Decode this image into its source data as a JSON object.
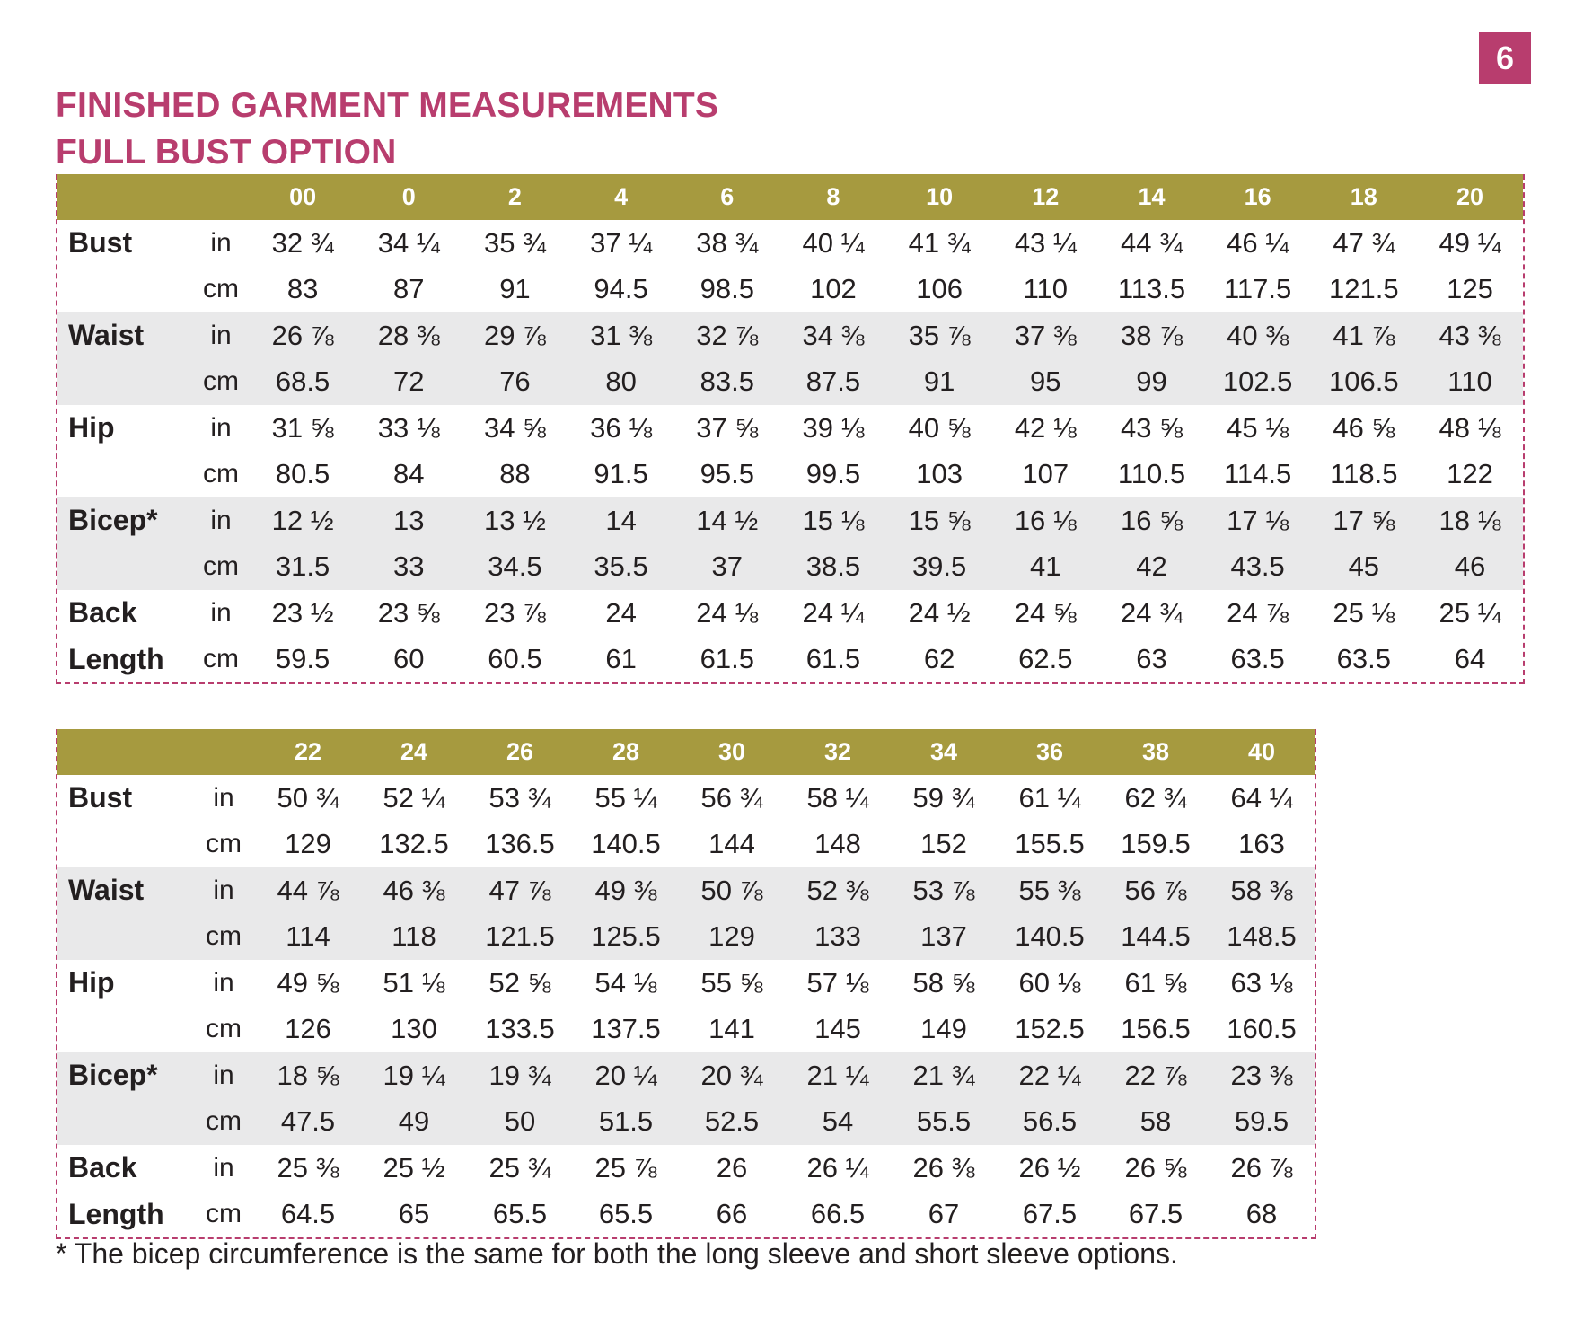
{
  "page_number": "6",
  "title": {
    "line1": "FINISHED GARMENT MEASUREMENTS",
    "line2": "FULL BUST OPTION"
  },
  "colors": {
    "accent": "#b83d6e",
    "header": "#a69a3f",
    "shade": "#e9e9ea"
  },
  "tables": [
    {
      "sizes": [
        "00",
        "0",
        "2",
        "4",
        "6",
        "8",
        "10",
        "12",
        "14",
        "16",
        "18",
        "20"
      ],
      "measurements": [
        {
          "label1": "Bust",
          "label2": "",
          "in": [
            "32 ¾",
            "34 ¼",
            "35 ¾",
            "37 ¼",
            "38 ¾",
            "40 ¼",
            "41 ¾",
            "43 ¼",
            "44 ¾",
            "46 ¼",
            "47 ¾",
            "49 ¼"
          ],
          "cm": [
            "83",
            "87",
            "91",
            "94.5",
            "98.5",
            "102",
            "106",
            "110",
            "113.5",
            "117.5",
            "121.5",
            "125"
          ]
        },
        {
          "label1": "Waist",
          "label2": "",
          "in": [
            "26 ⅞",
            "28 ⅜",
            "29 ⅞",
            "31 ⅜",
            "32 ⅞",
            "34 ⅜",
            "35 ⅞",
            "37 ⅜",
            "38 ⅞",
            "40 ⅜",
            "41 ⅞",
            "43 ⅜"
          ],
          "cm": [
            "68.5",
            "72",
            "76",
            "80",
            "83.5",
            "87.5",
            "91",
            "95",
            "99",
            "102.5",
            "106.5",
            "110"
          ]
        },
        {
          "label1": "Hip",
          "label2": "",
          "in": [
            "31 ⅝",
            "33 ⅛",
            "34 ⅝",
            "36 ⅛",
            "37 ⅝",
            "39 ⅛",
            "40 ⅝",
            "42 ⅛",
            "43 ⅝",
            "45 ⅛",
            "46 ⅝",
            "48 ⅛"
          ],
          "cm": [
            "80.5",
            "84",
            "88",
            "91.5",
            "95.5",
            "99.5",
            "103",
            "107",
            "110.5",
            "114.5",
            "118.5",
            "122"
          ]
        },
        {
          "label1": "Bicep*",
          "label2": "",
          "in": [
            "12 ½",
            "13",
            "13 ½",
            "14",
            "14 ½",
            "15 ⅛",
            "15 ⅝",
            "16 ⅛",
            "16 ⅝",
            "17 ⅛",
            "17 ⅝",
            "18 ⅛"
          ],
          "cm": [
            "31.5",
            "33",
            "34.5",
            "35.5",
            "37",
            "38.5",
            "39.5",
            "41",
            "42",
            "43.5",
            "45",
            "46"
          ]
        },
        {
          "label1": "Back",
          "label2": "Length",
          "in": [
            "23 ½",
            "23 ⅝",
            "23 ⅞",
            "24",
            "24 ⅛",
            "24 ¼",
            "24 ½",
            "24 ⅝",
            "24 ¾",
            "24 ⅞",
            "25 ⅛",
            "25 ¼"
          ],
          "cm": [
            "59.5",
            "60",
            "60.5",
            "61",
            "61.5",
            "61.5",
            "62",
            "62.5",
            "63",
            "63.5",
            "63.5",
            "64"
          ]
        }
      ]
    },
    {
      "sizes": [
        "22",
        "24",
        "26",
        "28",
        "30",
        "32",
        "34",
        "36",
        "38",
        "40"
      ],
      "measurements": [
        {
          "label1": "Bust",
          "label2": "",
          "in": [
            "50 ¾",
            "52 ¼",
            "53 ¾",
            "55 ¼",
            "56 ¾",
            "58 ¼",
            "59 ¾",
            "61 ¼",
            "62 ¾",
            "64 ¼"
          ],
          "cm": [
            "129",
            "132.5",
            "136.5",
            "140.5",
            "144",
            "148",
            "152",
            "155.5",
            "159.5",
            "163"
          ]
        },
        {
          "label1": "Waist",
          "label2": "",
          "in": [
            "44 ⅞",
            "46 ⅜",
            "47 ⅞",
            "49 ⅜",
            "50 ⅞",
            "52 ⅜",
            "53 ⅞",
            "55 ⅜",
            "56 ⅞",
            "58 ⅜"
          ],
          "cm": [
            "114",
            "118",
            "121.5",
            "125.5",
            "129",
            "133",
            "137",
            "140.5",
            "144.5",
            "148.5"
          ]
        },
        {
          "label1": "Hip",
          "label2": "",
          "in": [
            "49 ⅝",
            "51 ⅛",
            "52 ⅝",
            "54 ⅛",
            "55 ⅝",
            "57 ⅛",
            "58 ⅝",
            "60 ⅛",
            "61 ⅝",
            "63 ⅛"
          ],
          "cm": [
            "126",
            "130",
            "133.5",
            "137.5",
            "141",
            "145",
            "149",
            "152.5",
            "156.5",
            "160.5"
          ]
        },
        {
          "label1": "Bicep*",
          "label2": "",
          "in": [
            "18 ⅝",
            "19 ¼",
            "19 ¾",
            "20 ¼",
            "20 ¾",
            "21 ¼",
            "21 ¾",
            "22 ¼",
            "22 ⅞",
            "23 ⅜"
          ],
          "cm": [
            "47.5",
            "49",
            "50",
            "51.5",
            "52.5",
            "54",
            "55.5",
            "56.5",
            "58",
            "59.5"
          ]
        },
        {
          "label1": "Back",
          "label2": "Length",
          "in": [
            "25 ⅜",
            "25 ½",
            "25 ¾",
            "25 ⅞",
            "26",
            "26 ¼",
            "26 ⅜",
            "26 ½",
            "26 ⅝",
            "26 ⅞"
          ],
          "cm": [
            "64.5",
            "65",
            "65.5",
            "65.5",
            "66",
            "66.5",
            "67",
            "67.5",
            "67.5",
            "68"
          ]
        }
      ]
    }
  ],
  "unit_labels": {
    "in": "in",
    "cm": "cm"
  },
  "footnote": "*  The bicep circumference is the same for both the long sleeve and short sleeve options."
}
